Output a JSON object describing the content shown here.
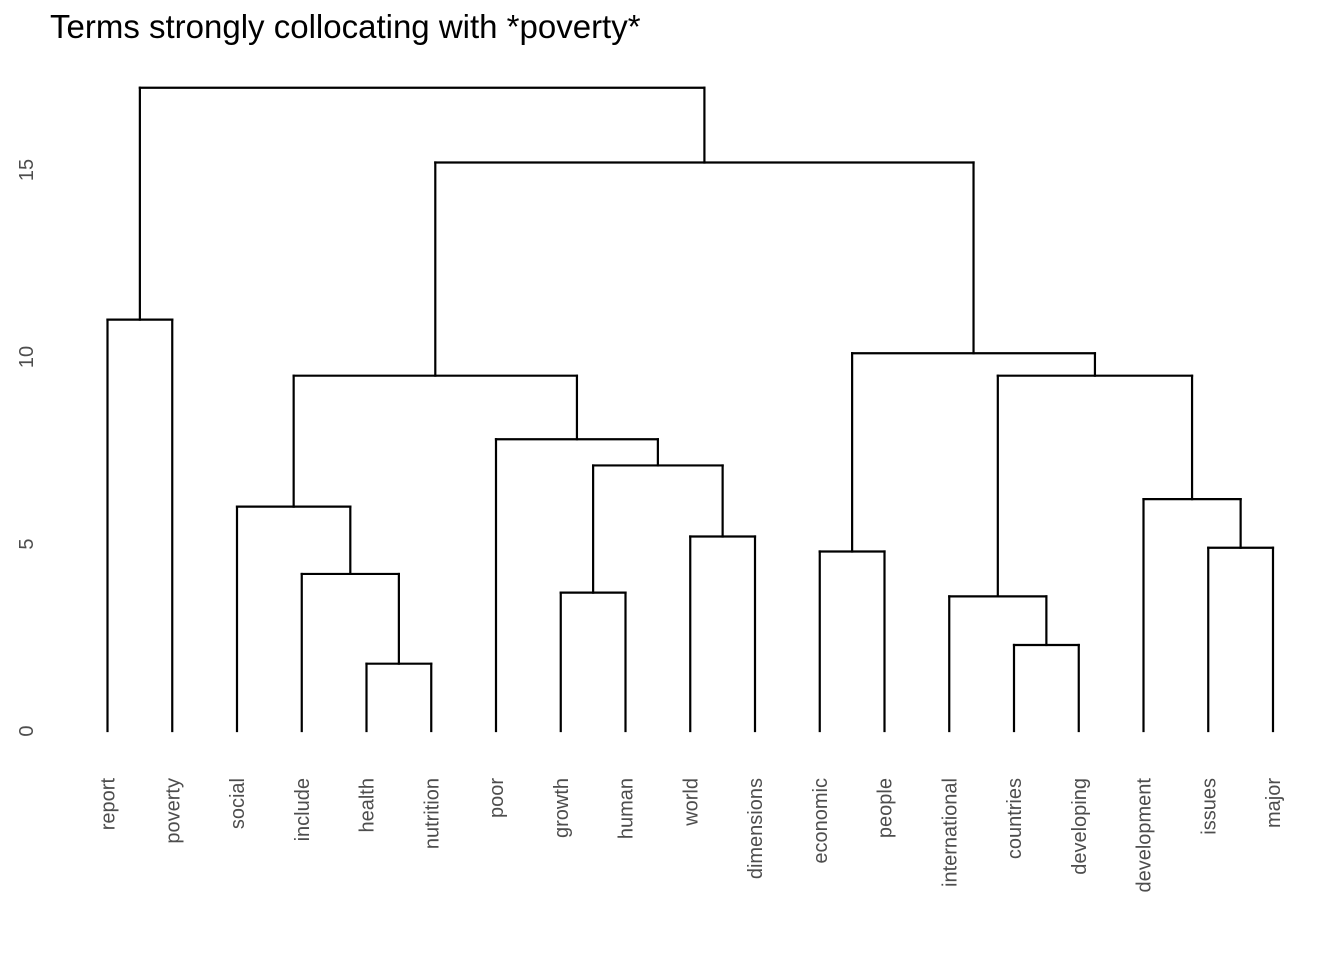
{
  "chart_data": {
    "type": "dendrogram",
    "title": "Terms strongly collocating with *poverty*",
    "xlabel": "",
    "ylabel": "",
    "ylim": [
      0,
      17.5
    ],
    "yticks": [
      0,
      5,
      10,
      15
    ],
    "grid": false,
    "legend": "none",
    "line_color": "#000000",
    "leaves": [
      "report",
      "poverty",
      "social",
      "include",
      "health",
      "nutrition",
      "poor",
      "growth",
      "human",
      "world",
      "dimensions",
      "economic",
      "people",
      "international",
      "countries",
      "developing",
      "development",
      "issues",
      "major"
    ],
    "merges": [
      {
        "left": "health",
        "right": "nutrition",
        "height": 1.8
      },
      {
        "left": "countries",
        "right": "developing",
        "height": 2.3
      },
      {
        "left": "international",
        "right": "countries|developing",
        "height": 3.6
      },
      {
        "left": "growth",
        "right": "human",
        "height": 3.7
      },
      {
        "left": "include",
        "right": "health|nutrition",
        "height": 4.2
      },
      {
        "left": "economic",
        "right": "people",
        "height": 4.8
      },
      {
        "left": "issues",
        "right": "major",
        "height": 4.9
      },
      {
        "left": "world",
        "right": "dimensions",
        "height": 5.2
      },
      {
        "left": "social",
        "right": "include|health|nutrition",
        "height": 6.0
      },
      {
        "left": "development",
        "right": "issues|major",
        "height": 6.2
      },
      {
        "left": "growth|human",
        "right": "world|dimensions",
        "height": 7.1
      },
      {
        "left": "poor",
        "right": "growth|human|world|dimensions",
        "height": 7.8
      },
      {
        "left": "social|include|health|nutrition",
        "right": "poor|growth|human|world|dimensions",
        "height": 9.5
      },
      {
        "left": "international|countries|developing",
        "right": "development|issues|major",
        "height": 9.5
      },
      {
        "left": "economic|people",
        "right": "international|countries|developing|development|issues|major",
        "height": 10.1
      },
      {
        "left": "report",
        "right": "poverty",
        "height": 11.0
      },
      {
        "left": "social|include|health|nutrition|poor|growth|human|world|dimensions",
        "right": "economic|people|international|countries|developing|development|issues|major",
        "height": 15.2
      },
      {
        "left": "report|poverty",
        "right": "social|include|health|nutrition|poor|growth|human|world|dimensions|economic|people|international|countries|developing|development|issues|major",
        "height": 17.2
      }
    ]
  }
}
